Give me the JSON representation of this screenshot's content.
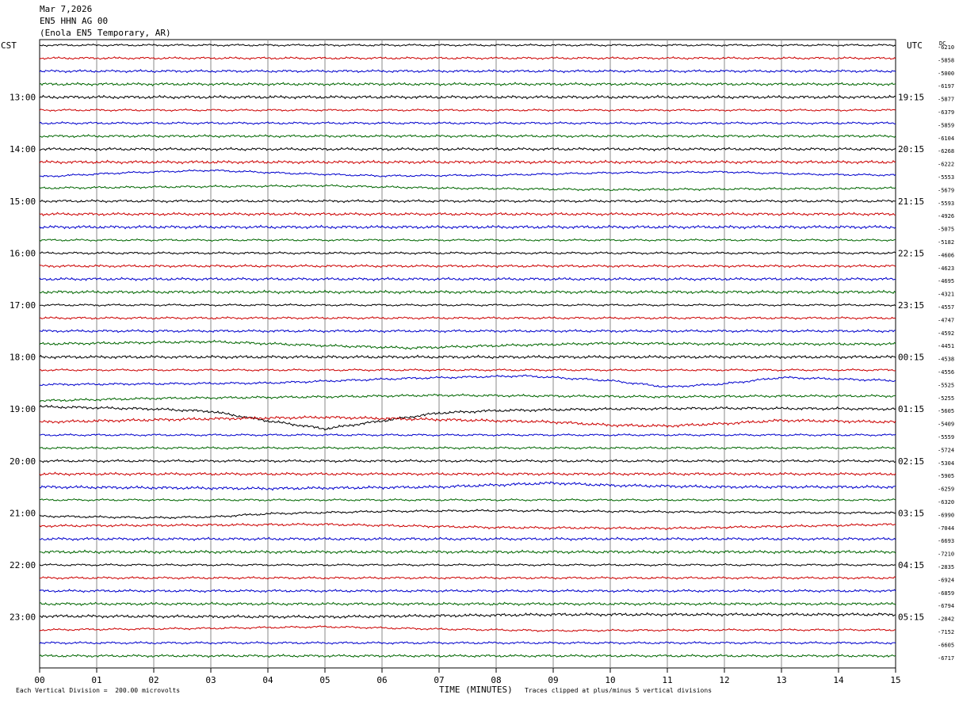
{
  "header": {
    "date": "Mar 7,2026",
    "channel": "EN5 HHN AG 00",
    "station": "(Enola EN5 Temporary, AR)"
  },
  "left_zone": "CST",
  "right_zone": "UTC",
  "dc_label": "DC",
  "colors": [
    "#000000",
    "#cc0000",
    "#0000cc",
    "#006600"
  ],
  "chart_data": {
    "type": "line",
    "title": "",
    "xlabel": "TIME (MINUTES)",
    "ylabel": "",
    "x_ticks": [
      "00",
      "01",
      "02",
      "03",
      "04",
      "05",
      "06",
      "07",
      "08",
      "09",
      "10",
      "11",
      "12",
      "13",
      "14",
      "15"
    ],
    "xlim": [
      0,
      15
    ],
    "num_traces": 48,
    "minutes_per_trace": 15,
    "left_hour_labels": [
      {
        "trace": 4,
        "label": "13:00"
      },
      {
        "trace": 8,
        "label": "14:00"
      },
      {
        "trace": 12,
        "label": "15:00"
      },
      {
        "trace": 16,
        "label": "16:00"
      },
      {
        "trace": 20,
        "label": "17:00"
      },
      {
        "trace": 24,
        "label": "18:00"
      },
      {
        "trace": 28,
        "label": "19:00"
      },
      {
        "trace": 32,
        "label": "20:00"
      },
      {
        "trace": 36,
        "label": "21:00"
      },
      {
        "trace": 40,
        "label": "22:00"
      },
      {
        "trace": 44,
        "label": "23:00"
      }
    ],
    "right_hour_labels": [
      {
        "trace": 4,
        "label": "19:15"
      },
      {
        "trace": 8,
        "label": "20:15"
      },
      {
        "trace": 12,
        "label": "21:15"
      },
      {
        "trace": 16,
        "label": "22:15"
      },
      {
        "trace": 20,
        "label": "23:15"
      },
      {
        "trace": 24,
        "label": "00:15"
      },
      {
        "trace": 28,
        "label": "01:15"
      },
      {
        "trace": 32,
        "label": "02:15"
      },
      {
        "trace": 36,
        "label": "03:15"
      },
      {
        "trace": 40,
        "label": "04:15"
      },
      {
        "trace": 44,
        "label": "05:15"
      }
    ],
    "dc_offsets": [
      "-6210",
      "-5858",
      "-5000",
      "-6197",
      "-5877",
      "-6379",
      "-5859",
      "-6104",
      "-6268",
      "-6222",
      "-5553",
      "-5679",
      "-5593",
      "-4926",
      "-5075",
      "-5182",
      "-4606",
      "-4623",
      "-4695",
      "-4321",
      "-4557",
      "-4747",
      "-4592",
      "-4451",
      "-4538",
      "-4556",
      "-5525",
      "-5255",
      "-5605",
      "-5409",
      "-5559",
      "-5724",
      "-5304",
      "-5905",
      "-6259",
      "-6320",
      "-6990",
      "-7044",
      "-6693",
      "-7210",
      "-2835",
      "-6924",
      "-6859",
      "-6794",
      "-2842",
      "-7152",
      "-6605",
      "-6717"
    ],
    "long_period": [
      {
        "trace": 10,
        "points": [
          [
            0,
            2
          ],
          [
            1.5,
            -3
          ],
          [
            3,
            -6
          ],
          [
            4.5,
            -2
          ],
          [
            6,
            1
          ],
          [
            8,
            0
          ],
          [
            10,
            -3
          ],
          [
            12,
            -4
          ],
          [
            13.5,
            -1
          ],
          [
            15,
            0
          ]
        ]
      },
      {
        "trace": 11,
        "points": [
          [
            0,
            0
          ],
          [
            3,
            -2
          ],
          [
            5,
            -3
          ],
          [
            7,
            0
          ],
          [
            10,
            2
          ],
          [
            15,
            0
          ]
        ]
      },
      {
        "trace": 23,
        "points": [
          [
            0,
            0
          ],
          [
            3,
            -3
          ],
          [
            5,
            2
          ],
          [
            6.5,
            5
          ],
          [
            8,
            2
          ],
          [
            10,
            -1
          ],
          [
            12,
            0
          ],
          [
            15,
            0
          ]
        ]
      },
      {
        "trace": 26,
        "points": [
          [
            0,
            2
          ],
          [
            4,
            0
          ],
          [
            6.5,
            -6
          ],
          [
            8.5,
            -9
          ],
          [
            10,
            -3
          ],
          [
            11,
            5
          ],
          [
            12,
            1
          ],
          [
            13,
            -7
          ],
          [
            14,
            -5
          ],
          [
            15,
            -3
          ]
        ]
      },
      {
        "trace": 27,
        "points": [
          [
            0,
            6
          ],
          [
            2,
            3
          ],
          [
            5,
            1
          ],
          [
            7,
            -1
          ],
          [
            9,
            0
          ],
          [
            11,
            1
          ],
          [
            13,
            0
          ],
          [
            15,
            0
          ]
        ]
      },
      {
        "trace": 28,
        "points": [
          [
            0,
            -3
          ],
          [
            2,
            0
          ],
          [
            3,
            3
          ],
          [
            4,
            15
          ],
          [
            5,
            25
          ],
          [
            6,
            15
          ],
          [
            7,
            5
          ],
          [
            8,
            2
          ],
          [
            10,
            0
          ],
          [
            12,
            -1
          ],
          [
            15,
            0
          ]
        ]
      },
      {
        "trace": 29,
        "points": [
          [
            0,
            0
          ],
          [
            3,
            -4
          ],
          [
            5,
            -6
          ],
          [
            7,
            -3
          ],
          [
            9,
            0
          ],
          [
            10,
            4
          ],
          [
            11,
            5
          ],
          [
            12,
            2
          ],
          [
            13,
            -2
          ],
          [
            15,
            0
          ]
        ]
      },
      {
        "trace": 34,
        "points": [
          [
            0,
            0
          ],
          [
            4,
            2
          ],
          [
            7,
            0
          ],
          [
            9,
            -5
          ],
          [
            10,
            -2
          ],
          [
            12,
            0
          ],
          [
            15,
            0
          ]
        ]
      },
      {
        "trace": 36,
        "points": [
          [
            0,
            4
          ],
          [
            2,
            6
          ],
          [
            3,
            5
          ],
          [
            4,
            1
          ],
          [
            6,
            -2
          ],
          [
            8,
            -3
          ],
          [
            10,
            -2
          ],
          [
            12,
            -1
          ],
          [
            15,
            0
          ]
        ]
      },
      {
        "trace": 37,
        "points": [
          [
            0,
            0
          ],
          [
            5,
            -2
          ],
          [
            8,
            2
          ],
          [
            11,
            3
          ],
          [
            15,
            -2
          ]
        ]
      },
      {
        "trace": 44,
        "points": [
          [
            0,
            -1
          ],
          [
            5,
            0
          ],
          [
            9,
            -3
          ],
          [
            11,
            -3
          ],
          [
            15,
            -3
          ]
        ]
      },
      {
        "trace": 45,
        "points": [
          [
            0,
            0
          ],
          [
            3,
            -2
          ],
          [
            5,
            -4
          ],
          [
            7,
            -1
          ],
          [
            9,
            1
          ],
          [
            12,
            0
          ],
          [
            15,
            0
          ]
        ]
      }
    ]
  },
  "footer": {
    "vertical_division": "Each Vertical Division =  200.00 microvolts",
    "clip_note": "Traces clipped at plus/minus 5 vertical divisions"
  }
}
